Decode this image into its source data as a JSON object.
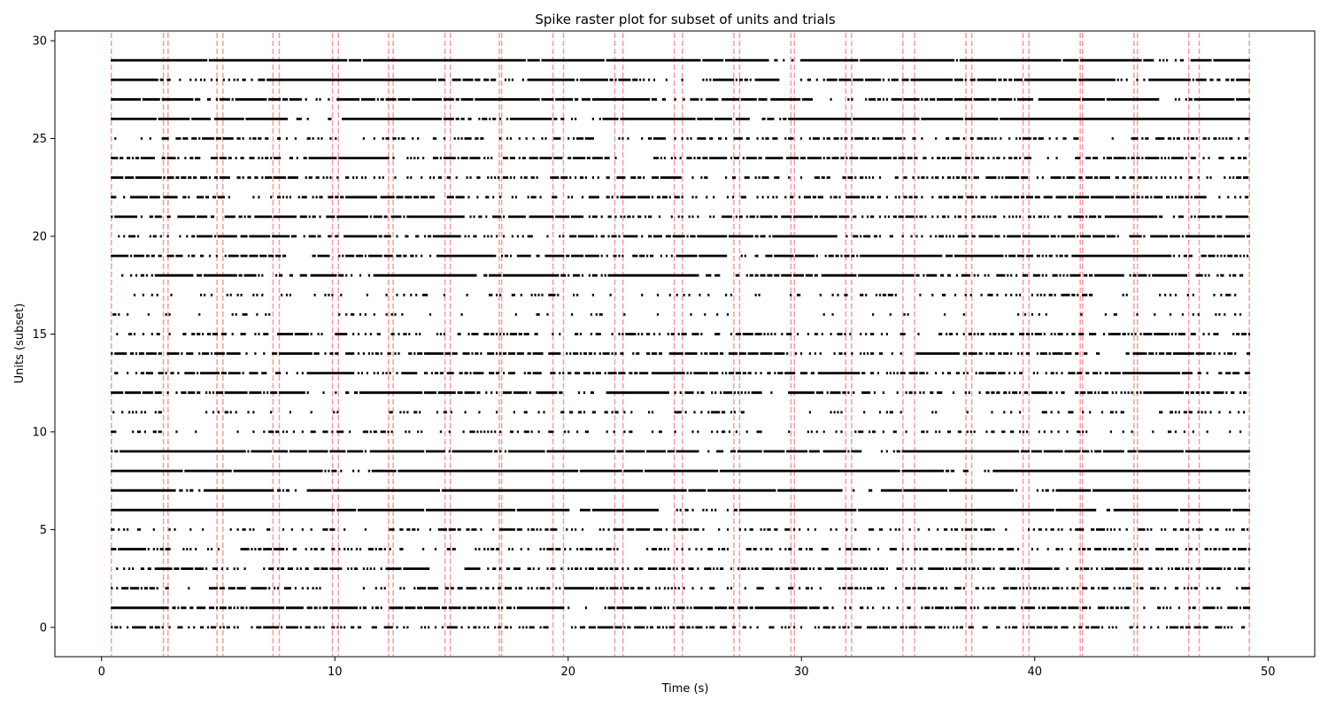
{
  "chart_data": {
    "type": "scatter",
    "title": "Spike raster plot for subset of units and trials",
    "xlabel": "Time (s)",
    "ylabel": "Units (subset)",
    "xlim": [
      -2,
      52
    ],
    "ylim": [
      -1.5,
      30.5
    ],
    "xticks": [
      0,
      10,
      20,
      30,
      40,
      50
    ],
    "yticks": [
      0,
      5,
      10,
      15,
      20,
      25,
      30
    ],
    "spike_start": 0.4,
    "spike_end": 49.2,
    "event_color": "#ff9999",
    "spike_color": "#000000",
    "trial_boundaries": [
      0.42,
      2.65,
      2.85,
      4.95,
      5.2,
      7.35,
      7.62,
      9.9,
      10.15,
      12.3,
      12.5,
      14.72,
      14.95,
      17.05,
      17.15,
      19.35,
      19.8,
      22.0,
      22.35,
      24.55,
      24.9,
      27.1,
      27.35,
      29.55,
      29.7,
      31.9,
      32.15,
      34.35,
      34.85,
      37.05,
      37.3,
      39.5,
      39.75,
      41.95,
      42.05,
      44.25,
      44.4,
      46.6,
      47.05,
      49.2
    ],
    "units": [
      {
        "unit": 0,
        "density": 0.45
      },
      {
        "unit": 1,
        "density": 0.62
      },
      {
        "unit": 2,
        "density": 0.5
      },
      {
        "unit": 3,
        "density": 0.6
      },
      {
        "unit": 4,
        "density": 0.45
      },
      {
        "unit": 5,
        "density": 0.4
      },
      {
        "unit": 6,
        "density": 0.98
      },
      {
        "unit": 7,
        "density": 0.99
      },
      {
        "unit": 8,
        "density": 0.98
      },
      {
        "unit": 9,
        "density": 0.92
      },
      {
        "unit": 10,
        "density": 0.25
      },
      {
        "unit": 11,
        "density": 0.2
      },
      {
        "unit": 12,
        "density": 0.65
      },
      {
        "unit": 13,
        "density": 0.72
      },
      {
        "unit": 14,
        "density": 0.62
      },
      {
        "unit": 15,
        "density": 0.5
      },
      {
        "unit": 16,
        "density": 0.12
      },
      {
        "unit": 17,
        "density": 0.2
      },
      {
        "unit": 18,
        "density": 0.8
      },
      {
        "unit": 19,
        "density": 0.75
      },
      {
        "unit": 20,
        "density": 0.65
      },
      {
        "unit": 21,
        "density": 0.6
      },
      {
        "unit": 22,
        "density": 0.55
      },
      {
        "unit": 23,
        "density": 0.5
      },
      {
        "unit": 24,
        "density": 0.6
      },
      {
        "unit": 25,
        "density": 0.5
      },
      {
        "unit": 26,
        "density": 0.97
      },
      {
        "unit": 27,
        "density": 0.9
      },
      {
        "unit": 28,
        "density": 0.85
      },
      {
        "unit": 29,
        "density": 0.98
      }
    ]
  }
}
